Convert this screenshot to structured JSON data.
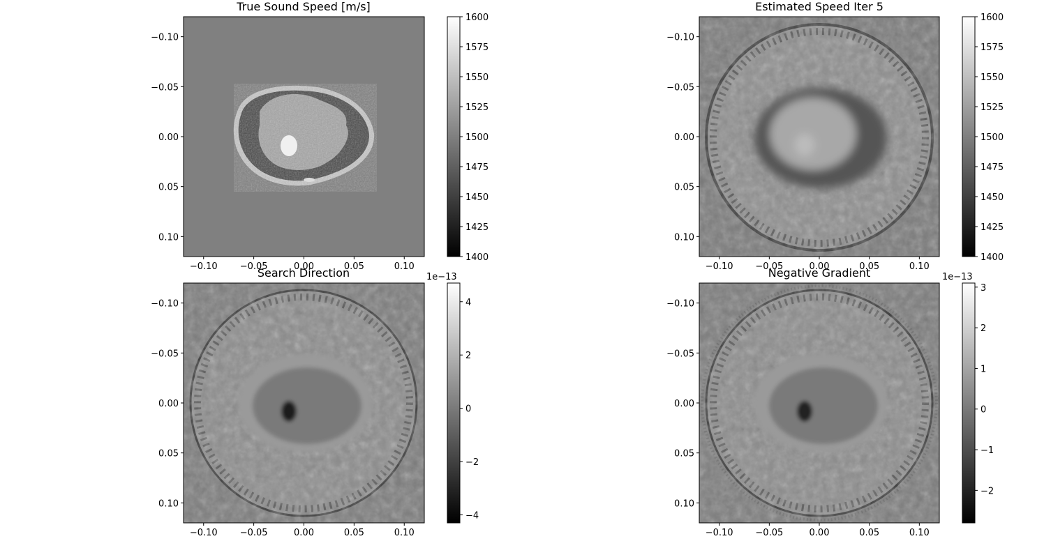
{
  "chart_data": [
    {
      "type": "heatmap",
      "title": "True Sound Speed [m/s]",
      "colormap": "gray",
      "xlim": [
        -0.12,
        0.12
      ],
      "ylim": [
        0.12,
        -0.12
      ],
      "x_ticks": [
        -0.1,
        -0.05,
        0.0,
        0.05,
        0.1
      ],
      "x_tick_labels": [
        "−0.10",
        "−0.05",
        "0.00",
        "0.05",
        "0.10"
      ],
      "y_ticks": [
        -0.1,
        -0.05,
        0.0,
        0.05,
        0.1
      ],
      "y_tick_labels": [
        "−0.10",
        "−0.05",
        "0.00",
        "0.05",
        "0.10"
      ],
      "colorbar": {
        "range": [
          1400,
          1600
        ],
        "ticks": [
          1400,
          1425,
          1450,
          1475,
          1500,
          1525,
          1550,
          1575,
          1600
        ],
        "tick_labels": [
          "1400",
          "1425",
          "1450",
          "1475",
          "1500",
          "1525",
          "1550",
          "1575",
          "1600"
        ],
        "offset_text": ""
      }
    },
    {
      "type": "heatmap",
      "title": "Estimated Speed Iter  5",
      "colormap": "gray",
      "xlim": [
        -0.12,
        0.12
      ],
      "ylim": [
        0.12,
        -0.12
      ],
      "x_ticks": [
        -0.1,
        -0.05,
        0.0,
        0.05,
        0.1
      ],
      "x_tick_labels": [
        "−0.10",
        "−0.05",
        "0.00",
        "0.05",
        "0.10"
      ],
      "y_ticks": [
        -0.1,
        -0.05,
        0.0,
        0.05,
        0.1
      ],
      "y_tick_labels": [
        "−0.10",
        "−0.05",
        "0.00",
        "0.05",
        "0.10"
      ],
      "colorbar": {
        "range": [
          1400,
          1600
        ],
        "ticks": [
          1400,
          1425,
          1450,
          1475,
          1500,
          1525,
          1550,
          1575,
          1600
        ],
        "tick_labels": [
          "1400",
          "1425",
          "1450",
          "1475",
          "1500",
          "1525",
          "1550",
          "1575",
          "1600"
        ],
        "offset_text": ""
      }
    },
    {
      "type": "heatmap",
      "title": "Search Direction",
      "colormap": "gray",
      "xlim": [
        -0.12,
        0.12
      ],
      "ylim": [
        0.12,
        -0.12
      ],
      "x_ticks": [
        -0.1,
        -0.05,
        0.0,
        0.05,
        0.1
      ],
      "x_tick_labels": [
        "−0.10",
        "−0.05",
        "0.00",
        "0.05",
        "0.10"
      ],
      "y_ticks": [
        -0.1,
        -0.05,
        0.0,
        0.05,
        0.1
      ],
      "y_tick_labels": [
        "−0.10",
        "−0.05",
        "0.00",
        "0.05",
        "0.10"
      ],
      "colorbar": {
        "range": [
          -4.3,
          4.7
        ],
        "ticks": [
          -4,
          -2,
          0,
          2,
          4
        ],
        "tick_labels": [
          "−4",
          "−2",
          "0",
          "2",
          "4"
        ],
        "offset_text": "1e−13"
      }
    },
    {
      "type": "heatmap",
      "title": "Negative Gradient",
      "colormap": "gray",
      "xlim": [
        -0.12,
        0.12
      ],
      "ylim": [
        0.12,
        -0.12
      ],
      "x_ticks": [
        -0.1,
        -0.05,
        0.0,
        0.05,
        0.1
      ],
      "x_tick_labels": [
        "−0.10",
        "−0.05",
        "0.00",
        "0.05",
        "0.10"
      ],
      "y_ticks": [
        -0.1,
        -0.05,
        0.0,
        0.05,
        0.1
      ],
      "y_tick_labels": [
        "−0.10",
        "−0.05",
        "0.00",
        "0.05",
        "0.10"
      ],
      "colorbar": {
        "range": [
          -2.8,
          3.1
        ],
        "ticks": [
          -2,
          -1,
          0,
          1,
          2,
          3
        ],
        "tick_labels": [
          "−2",
          "−1",
          "0",
          "1",
          "2",
          "3"
        ],
        "offset_text": "1e−13"
      }
    }
  ]
}
